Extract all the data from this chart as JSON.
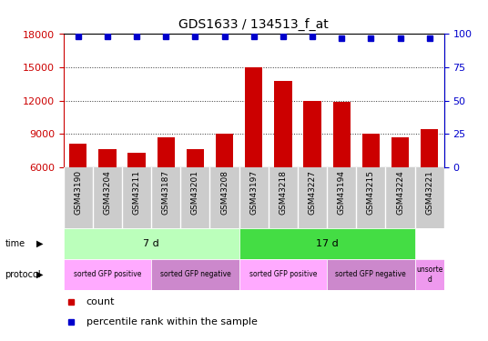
{
  "title": "GDS1633 / 134513_f_at",
  "samples": [
    "GSM43190",
    "GSM43204",
    "GSM43211",
    "GSM43187",
    "GSM43201",
    "GSM43208",
    "GSM43197",
    "GSM43218",
    "GSM43227",
    "GSM43194",
    "GSM43215",
    "GSM43224",
    "GSM43221"
  ],
  "counts": [
    8100,
    7600,
    7300,
    8700,
    7600,
    9000,
    15000,
    13800,
    12000,
    11900,
    9000,
    8700,
    9400
  ],
  "percentile_ranks": [
    98,
    98,
    98,
    98,
    98,
    98,
    98,
    98,
    98,
    97,
    97,
    97,
    97
  ],
  "ylim_left": [
    6000,
    18000
  ],
  "ylim_right": [
    0,
    100
  ],
  "yticks_left": [
    6000,
    9000,
    12000,
    15000,
    18000
  ],
  "yticks_right": [
    0,
    25,
    50,
    75,
    100
  ],
  "bar_color": "#cc0000",
  "dot_color": "#0000cc",
  "bg_color": "#ffffff",
  "time_groups": [
    {
      "label": "7 d",
      "start": 0,
      "end": 6,
      "color": "#bbffbb"
    },
    {
      "label": "17 d",
      "start": 6,
      "end": 12,
      "color": "#44dd44"
    }
  ],
  "protocol_groups": [
    {
      "label": "sorted GFP positive",
      "start": 0,
      "end": 3,
      "color": "#ffaaff"
    },
    {
      "label": "sorted GFP negative",
      "start": 3,
      "end": 6,
      "color": "#cc88cc"
    },
    {
      "label": "sorted GFP positive",
      "start": 6,
      "end": 9,
      "color": "#ffaaff"
    },
    {
      "label": "sorted GFP negative",
      "start": 9,
      "end": 12,
      "color": "#cc88cc"
    },
    {
      "label": "unsorte\nd",
      "start": 12,
      "end": 13,
      "color": "#ee99ee"
    }
  ],
  "legend_count_color": "#cc0000",
  "legend_pct_color": "#0000cc",
  "legend_count_label": "count",
  "legend_pct_label": "percentile rank within the sample",
  "xlabel_row_color": "#cccccc"
}
